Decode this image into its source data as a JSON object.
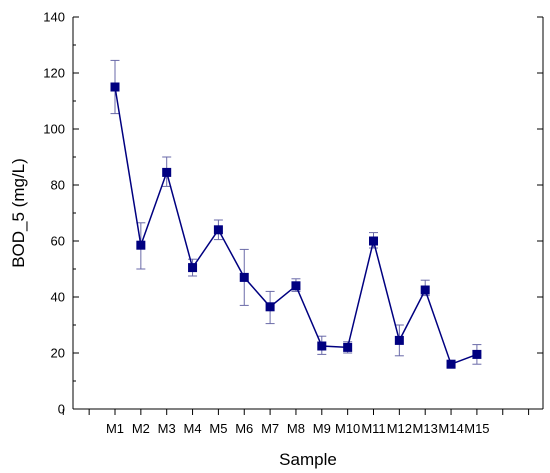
{
  "chart_data": {
    "type": "line",
    "title": "",
    "xlabel": "Sample",
    "ylabel": "BOD_5 (mg/L)",
    "categories": [
      "M1",
      "M2",
      "M3",
      "M4",
      "M5",
      "M6",
      "M7",
      "M8",
      "M9",
      "M10",
      "M11",
      "M12",
      "M13",
      "M14",
      "M15"
    ],
    "series": [
      {
        "values": [
          115,
          58.5,
          84.5,
          50.5,
          64,
          47,
          36.5,
          44,
          22.5,
          22,
          60,
          24.5,
          42.5,
          16,
          19.5
        ],
        "error_low": [
          105.5,
          50,
          79.5,
          47.5,
          60.5,
          37,
          30.5,
          42,
          19.5,
          20,
          57.5,
          19,
          40.5,
          15,
          16
        ],
        "error_high": [
          124.5,
          66.5,
          90,
          53.5,
          67.5,
          57,
          42,
          46.5,
          26,
          24,
          63,
          30,
          46,
          17,
          23
        ]
      }
    ],
    "ylim": [
      0,
      140
    ],
    "yticks": [
      0,
      20,
      40,
      60,
      80,
      100,
      120,
      140
    ],
    "grid": false,
    "legend": "none",
    "colors": {
      "series": "#000080",
      "error": "#6a6aa8",
      "axis": "#000000"
    }
  }
}
